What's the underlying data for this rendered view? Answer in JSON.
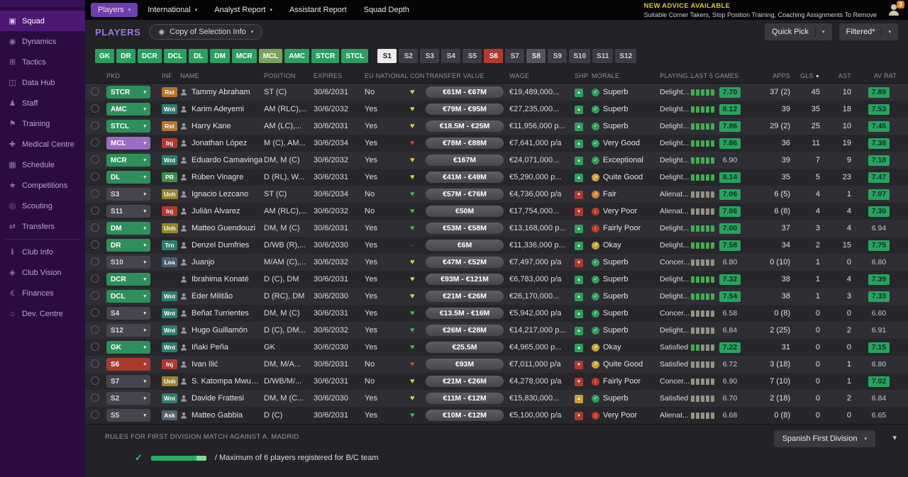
{
  "palette": {
    "accent_purple": "#6e3fae",
    "positive_green": "#2d9e5f",
    "negative_red": "#b03a30",
    "warning_yellow": "#d8c831"
  },
  "sidebar": {
    "items": [
      {
        "label": "Squad",
        "glyph": "▣",
        "active": true
      },
      {
        "label": "Dynamics",
        "glyph": "◉"
      },
      {
        "label": "Tactics",
        "glyph": "⊞"
      },
      {
        "label": "Data Hub",
        "glyph": "◫"
      },
      {
        "label": "Staff",
        "glyph": "♟"
      },
      {
        "label": "Training",
        "glyph": "⚑"
      },
      {
        "label": "Medical Centre",
        "glyph": "✚"
      },
      {
        "label": "Schedule",
        "glyph": "▦"
      },
      {
        "label": "Competitions",
        "glyph": "★"
      },
      {
        "label": "Scouting",
        "glyph": "◎"
      },
      {
        "label": "Transfers",
        "glyph": "⇄"
      },
      {
        "label": "Club Info",
        "glyph": "ℹ",
        "sep_before": true
      },
      {
        "label": "Club Vision",
        "glyph": "◈"
      },
      {
        "label": "Finances",
        "glyph": "€"
      },
      {
        "label": "Dev. Centre",
        "glyph": "⌂"
      }
    ]
  },
  "topbar": {
    "menus": [
      {
        "label": "Players",
        "primary": true,
        "caret": true
      },
      {
        "label": "International",
        "caret": true
      },
      {
        "label": "Analyst Report",
        "caret": true
      },
      {
        "label": "Assistant Report",
        "caret": false
      },
      {
        "label": "Squad Depth",
        "caret": false
      }
    ],
    "advice_title": "NEW ADVICE AVAILABLE",
    "advice_text": "Suitable Corner Takers, Stop Position Training, Coaching Assignments To Remove",
    "badge": "3"
  },
  "toolbar": {
    "section_label": "PLAYERS",
    "view_selector": "Copy of Selection Info",
    "quick_pick": "Quick Pick",
    "filtered": "Filtered*"
  },
  "filters": {
    "buttons": [
      {
        "label": "GK",
        "style": "green"
      },
      {
        "label": "DR",
        "style": "green"
      },
      {
        "label": "DCR",
        "style": "green"
      },
      {
        "label": "DCL",
        "style": "green"
      },
      {
        "label": "DL",
        "style": "green"
      },
      {
        "label": "DM",
        "style": "green"
      },
      {
        "label": "MCR",
        "style": "green"
      },
      {
        "label": "MCL",
        "style": "faded"
      },
      {
        "label": "AMC",
        "style": "green"
      },
      {
        "label": "STCR",
        "style": "green"
      },
      {
        "label": "STCL",
        "style": "green"
      },
      {
        "label": "S1",
        "style": "selected",
        "gap_before": true
      },
      {
        "label": "S2",
        "style": "dark"
      },
      {
        "label": "S3",
        "style": "dark"
      },
      {
        "label": "S4",
        "style": "dark"
      },
      {
        "label": "S5",
        "style": "dark"
      },
      {
        "label": "S6",
        "style": "red"
      },
      {
        "label": "S7",
        "style": "dark"
      },
      {
        "label": "S8",
        "style": "mid"
      },
      {
        "label": "S9",
        "style": "dark"
      },
      {
        "label": "S10",
        "style": "dark"
      },
      {
        "label": "S11",
        "style": "dark"
      },
      {
        "label": "S12",
        "style": "dark"
      }
    ]
  },
  "table": {
    "columns": [
      {
        "label": ""
      },
      {
        "label": "PKD"
      },
      {
        "label": "INF"
      },
      {
        "label": "NAME"
      },
      {
        "label": "POSITION"
      },
      {
        "label": "EXPIRES"
      },
      {
        "label": "EU NATIONAL"
      },
      {
        "label": "CON"
      },
      {
        "label": "TRANSFER VALUE"
      },
      {
        "label": "WAGE"
      },
      {
        "label": "SHP"
      },
      {
        "label": "MORALE"
      },
      {
        "label": "PLAYING..."
      },
      {
        "label": "LAST 5 GAMES"
      },
      {
        "label": "APPS",
        "align": "right"
      },
      {
        "label": "GLS",
        "align": "right",
        "sort": "desc"
      },
      {
        "label": "AST",
        "align": "right"
      },
      {
        "label": "AV RAT",
        "align": "right"
      }
    ],
    "rows": [
      {
        "pkd": "STCR",
        "pkd_style": "pos",
        "inf": "Rst",
        "inf_style": "rst",
        "name": "Tammy Abraham",
        "position": "ST (C)",
        "expires": "30/6/2031",
        "eu": "No",
        "con": "yellow",
        "value": "€61M - €67M",
        "wage": "€19,489,000...",
        "shp": "up",
        "morale": "Superb",
        "morale_level": "green",
        "playing": "Delight...",
        "bars": "ggggg",
        "l5": "7.70",
        "l5_badge": true,
        "apps": "37 (2)",
        "gls": "45",
        "ast": "10",
        "av": "7.89",
        "av_badge": true
      },
      {
        "pkd": "AMC",
        "pkd_style": "pos",
        "inf": "Wnt",
        "inf_style": "wnt",
        "name": "Karim Adeyemi",
        "position": "AM (RLC),...",
        "expires": "30/6/2032",
        "eu": "Yes",
        "con": "yellow",
        "value": "€79M - €95M",
        "wage": "€27,235,000...",
        "shp": "up",
        "morale": "Superb",
        "morale_level": "green",
        "playing": "Delight...",
        "bars": "ggggg",
        "l5": "8.12",
        "l5_badge": true,
        "apps": "39",
        "gls": "35",
        "ast": "18",
        "av": "7.53",
        "av_badge": true
      },
      {
        "pkd": "STCL",
        "pkd_style": "pos",
        "inf": "Rst",
        "inf_style": "rst",
        "name": "Harry Kane",
        "position": "AM (LC),...",
        "expires": "30/6/2031",
        "eu": "Yes",
        "con": "yellow",
        "value": "€18.5M - €25M",
        "wage": "€11,956,000 p...",
        "shp": "up",
        "morale": "Superb",
        "morale_level": "green",
        "playing": "Delight...",
        "bars": "ggggg",
        "l5": "7.86",
        "l5_badge": true,
        "apps": "29 (2)",
        "gls": "25",
        "ast": "10",
        "av": "7.45",
        "av_badge": true
      },
      {
        "pkd": "MCL",
        "pkd_style": "purple",
        "inf": "Inj",
        "inf_style": "inj",
        "name": "Jonathan López",
        "position": "M (C), AM...",
        "expires": "30/6/2034",
        "eu": "Yes",
        "con": "red",
        "value": "€78M - €88M",
        "wage": "€7,641,000 p/a",
        "shp": "up",
        "morale": "Very Good",
        "morale_level": "green",
        "playing": "Delight...",
        "bars": "ggggg",
        "l5": "7.86",
        "l5_badge": true,
        "apps": "36",
        "gls": "11",
        "ast": "19",
        "av": "7.38",
        "av_badge": true
      },
      {
        "pkd": "MCR",
        "pkd_style": "pos",
        "inf": "Wnt",
        "inf_style": "wnt",
        "name": "Eduardo Camavinga",
        "position": "DM, M (C)",
        "expires": "30/6/2032",
        "eu": "Yes",
        "con": "yellow",
        "value": "€167M",
        "wage": "€24,071,000...",
        "shp": "up",
        "morale": "Exceptional",
        "morale_level": "green",
        "playing": "Delight...",
        "bars": "ggggg",
        "l5": "6.90",
        "l5_badge": false,
        "apps": "39",
        "gls": "7",
        "ast": "9",
        "av": "7.18",
        "av_badge": true
      },
      {
        "pkd": "DL",
        "pkd_style": "pos",
        "inf": "PR",
        "inf_style": "pr",
        "name": "Rúben Vinagre",
        "position": "D (RL), W...",
        "expires": "30/6/2031",
        "eu": "Yes",
        "con": "yellow",
        "value": "€41M - €49M",
        "wage": "€5,290,000 p...",
        "shp": "up",
        "morale": "Quite Good",
        "morale_level": "yellow",
        "playing": "Delight...",
        "bars": "ggggg",
        "l5": "8.14",
        "l5_badge": true,
        "apps": "35",
        "gls": "5",
        "ast": "23",
        "av": "7.47",
        "av_badge": true
      },
      {
        "pkd": "S3",
        "pkd_style": "dark",
        "inf": "Unh",
        "inf_style": "unh",
        "name": "Ignacio Lezcano",
        "position": "ST (C)",
        "expires": "30/6/2034",
        "eu": "No",
        "con": "green",
        "value": "€57M - €76M",
        "wage": "€4,736,000 p/a",
        "shp": "down",
        "morale": "Fair",
        "morale_level": "orange",
        "playing": "Alienat...",
        "bars": "ddddd",
        "l5": "7.06",
        "l5_badge": true,
        "apps": "6 (5)",
        "gls": "4",
        "ast": "1",
        "av": "7.07",
        "av_badge": true
      },
      {
        "pkd": "S11",
        "pkd_style": "dark",
        "inf": "Inj",
        "inf_style": "inj",
        "name": "Julián Álvarez",
        "position": "AM (RLC),...",
        "expires": "30/6/2032",
        "eu": "No",
        "con": "green",
        "value": "€50M",
        "wage": "€17,754,000...",
        "shp": "down",
        "morale": "Very Poor",
        "morale_level": "red",
        "playing": "Alienat...",
        "bars": "ddddd",
        "l5": "7.06",
        "l5_badge": true,
        "apps": "6 (8)",
        "gls": "4",
        "ast": "4",
        "av": "7.30",
        "av_badge": true
      },
      {
        "pkd": "DM",
        "pkd_style": "pos",
        "inf": "Unh",
        "inf_style": "unh",
        "name": "Matteo Guendouzi",
        "position": "DM, M (C)",
        "expires": "30/6/2031",
        "eu": "Yes",
        "con": "green",
        "value": "€53M - €58M",
        "wage": "€13,168,000 p...",
        "shp": "up",
        "morale": "Fairly Poor",
        "morale_level": "red",
        "playing": "Delight...",
        "bars": "ggggg",
        "l5": "7.00",
        "l5_badge": true,
        "apps": "37",
        "gls": "3",
        "ast": "4",
        "av": "6.94",
        "av_badge": false
      },
      {
        "pkd": "DR",
        "pkd_style": "pos",
        "inf": "Trn",
        "inf_style": "trn",
        "name": "Denzel Dumfries",
        "position": "D/WB (R),...",
        "expires": "30/6/2030",
        "eu": "Yes",
        "con": "none",
        "value": "€6M",
        "wage": "€11,336,000 p...",
        "shp": "up",
        "morale": "Okay",
        "morale_level": "yellow",
        "playing": "Delight...",
        "bars": "ggggg",
        "l5": "7.58",
        "l5_badge": true,
        "apps": "34",
        "gls": "2",
        "ast": "15",
        "av": "7.75",
        "av_badge": true
      },
      {
        "pkd": "S10",
        "pkd_style": "dark",
        "inf": "Loa",
        "inf_style": "loa",
        "name": "Juanjo",
        "position": "M/AM (C),...",
        "expires": "30/6/2032",
        "eu": "Yes",
        "con": "yellow",
        "value": "€47M - €52M",
        "wage": "€7,497,000 p/a",
        "shp": "down",
        "morale": "Superb",
        "morale_level": "green",
        "playing": "Concer...",
        "bars": "ddddd",
        "l5": "6.80",
        "l5_badge": false,
        "apps": "0 (10)",
        "gls": "1",
        "ast": "0",
        "av": "6.80",
        "av_badge": false
      },
      {
        "pkd": "DCR",
        "pkd_style": "pos",
        "inf": "",
        "inf_style": "",
        "name": "Ibrahima Konaté",
        "position": "D (C), DM",
        "expires": "30/6/2031",
        "eu": "Yes",
        "con": "yellow",
        "value": "€93M - €121M",
        "wage": "€6,783,000 p/a",
        "shp": "up",
        "morale": "Superb",
        "morale_level": "green",
        "playing": "Delight...",
        "bars": "ggggg",
        "l5": "7.32",
        "l5_badge": true,
        "apps": "38",
        "gls": "1",
        "ast": "4",
        "av": "7.39",
        "av_badge": true
      },
      {
        "pkd": "DCL",
        "pkd_style": "pos",
        "inf": "Wnt",
        "inf_style": "wnt",
        "name": "Éder Militão",
        "position": "D (RC), DM",
        "expires": "30/6/2030",
        "eu": "Yes",
        "con": "yellow",
        "value": "€21M - €26M",
        "wage": "€26,170,000...",
        "shp": "up",
        "morale": "Superb",
        "morale_level": "green",
        "playing": "Delight...",
        "bars": "ggggg",
        "l5": "7.54",
        "l5_badge": true,
        "apps": "38",
        "gls": "1",
        "ast": "3",
        "av": "7.33",
        "av_badge": true
      },
      {
        "pkd": "S4",
        "pkd_style": "dark",
        "inf": "Wnt",
        "inf_style": "wnt",
        "name": "Beñat Turrientes",
        "position": "DM, M (C)",
        "expires": "30/6/2031",
        "eu": "Yes",
        "con": "green",
        "value": "€13.5M - €16M",
        "wage": "€5,942,000 p/a",
        "shp": "up",
        "morale": "Superb",
        "morale_level": "green",
        "playing": "Concer...",
        "bars": "ddddd",
        "l5": "6.58",
        "l5_badge": false,
        "apps": "0 (8)",
        "gls": "0",
        "ast": "0",
        "av": "6.60",
        "av_badge": false
      },
      {
        "pkd": "S12",
        "pkd_style": "dark",
        "inf": "Wnt",
        "inf_style": "wnt",
        "name": "Hugo Guillamón",
        "position": "D (C), DM...",
        "expires": "30/6/2032",
        "eu": "Yes",
        "con": "green",
        "value": "€26M - €28M",
        "wage": "€14,217,000 p...",
        "shp": "up",
        "morale": "Superb",
        "morale_level": "green",
        "playing": "Delight...",
        "bars": "ddddd",
        "l5": "6.84",
        "l5_badge": false,
        "apps": "2 (25)",
        "gls": "0",
        "ast": "2",
        "av": "6.91",
        "av_badge": false
      },
      {
        "pkd": "GK",
        "pkd_style": "pos",
        "inf": "Wnt",
        "inf_style": "wnt",
        "name": "Iñaki Peña",
        "position": "GK",
        "expires": "30/6/2030",
        "eu": "Yes",
        "con": "green",
        "value": "€25.5M",
        "wage": "€4,965,000 p...",
        "shp": "up",
        "morale": "Okay",
        "morale_level": "yellow",
        "playing": "Satisfied",
        "bars": "ggddd",
        "l5": "7.22",
        "l5_badge": true,
        "apps": "31",
        "gls": "0",
        "ast": "0",
        "av": "7.15",
        "av_badge": true
      },
      {
        "pkd": "S6",
        "pkd_style": "red",
        "inf": "Inj",
        "inf_style": "inj",
        "name": "Ivan Ilić",
        "position": "DM, M/A...",
        "expires": "30/6/2031",
        "eu": "No",
        "con": "red",
        "value": "€93M",
        "wage": "€7,011,000 p/a",
        "shp": "down",
        "morale": "Quite Good",
        "morale_level": "yellow",
        "playing": "Satisfied",
        "bars": "ddddd",
        "l5": "6.72",
        "l5_badge": false,
        "apps": "3 (18)",
        "gls": "0",
        "ast": "1",
        "av": "6.80",
        "av_badge": false
      },
      {
        "pkd": "S7",
        "pkd_style": "dark",
        "inf": "Unh",
        "inf_style": "unh",
        "name": "S. Katompa Mwumpa",
        "position": "D/WB/M/...",
        "expires": "30/6/2031",
        "eu": "No",
        "con": "yellow",
        "value": "€21M - €26M",
        "wage": "€4,278,000 p/a",
        "shp": "down",
        "morale": "Fairly Poor",
        "morale_level": "red",
        "playing": "Concer...",
        "bars": "ddddd",
        "l5": "6.90",
        "l5_badge": false,
        "apps": "7 (10)",
        "gls": "0",
        "ast": "1",
        "av": "7.02",
        "av_badge": true
      },
      {
        "pkd": "S2",
        "pkd_style": "dark",
        "inf": "Wnt",
        "inf_style": "wnt",
        "name": "Davide Frattesi",
        "position": "DM, M (C...",
        "expires": "30/6/2030",
        "eu": "Yes",
        "con": "yellow",
        "value": "€11M - €12M",
        "wage": "€15,830,000...",
        "shp": "flat",
        "morale": "Superb",
        "morale_level": "green",
        "playing": "Satisfied",
        "bars": "ddddd",
        "l5": "6.70",
        "l5_badge": false,
        "apps": "2 (18)",
        "gls": "0",
        "ast": "2",
        "av": "6.84",
        "av_badge": false
      },
      {
        "pkd": "S5",
        "pkd_style": "dark",
        "inf": "Ask",
        "inf_style": "ask",
        "name": "Matteo Gabbia",
        "position": "D (C)",
        "expires": "30/6/2031",
        "eu": "Yes",
        "con": "green",
        "value": "€10M - €12M",
        "wage": "€5,100,000 p/a",
        "shp": "down",
        "morale": "Very Poor",
        "morale_level": "red",
        "playing": "Alienat...",
        "bars": "ddddd",
        "l5": "6.68",
        "l5_badge": false,
        "apps": "0 (8)",
        "gls": "0",
        "ast": "0",
        "av": "6.65",
        "av_badge": false
      }
    ]
  },
  "footer": {
    "rules_title": "RULES FOR FIRST DIVISION MATCH AGAINST A. MADRID",
    "rule_text": "/  Maximum of 6 players registered for B/C team",
    "division": "Spanish First Division"
  }
}
